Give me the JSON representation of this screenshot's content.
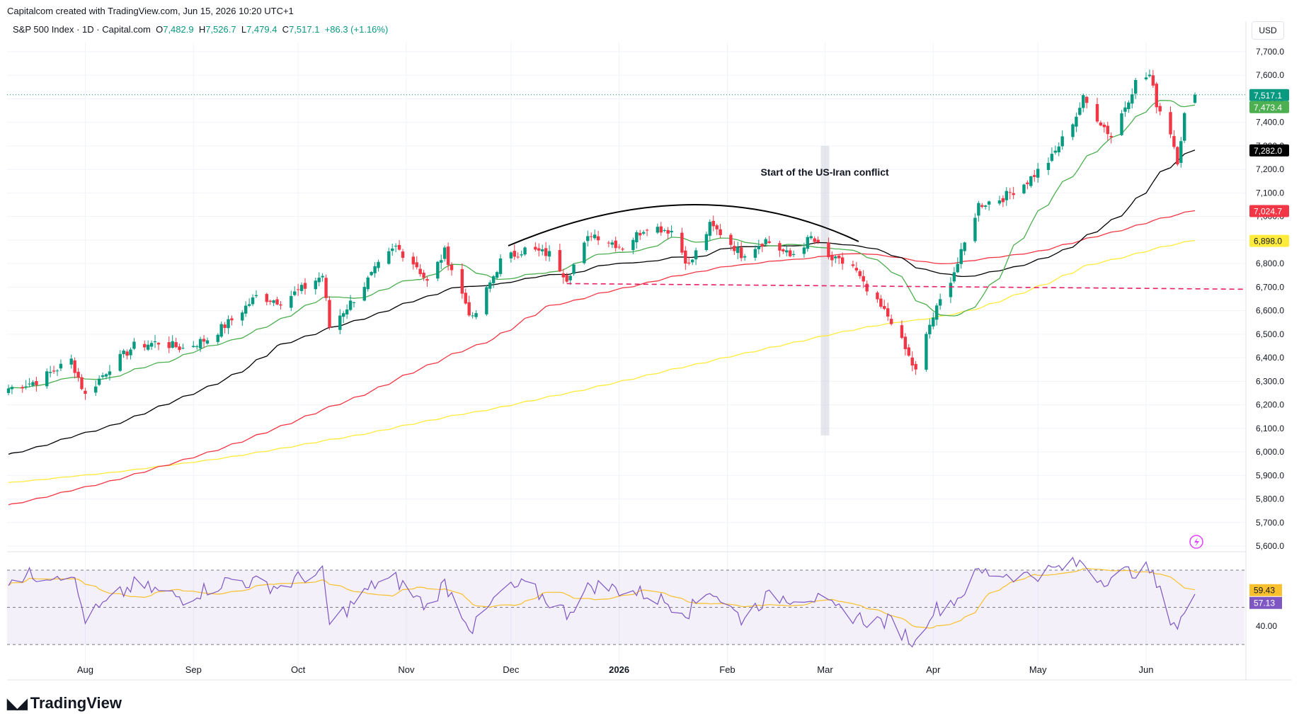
{
  "header": {
    "caption": "Capitalcom created with TradingView.com, Jun 15, 2026 10:20 UTC+1",
    "symbol": "S&P 500 Index · 1D · Capital.com",
    "o_label": "O",
    "o_value": "7,482.9",
    "h_label": "H",
    "h_value": "7,526.7",
    "l_label": "L",
    "l_value": "7,479.4",
    "c_label": "C",
    "c_value": "7,517.1",
    "change": "+86.3 (+1.16%)",
    "currency": "USD"
  },
  "brand": {
    "name": "TradingView",
    "logo_icon": "tradingview-logo-icon"
  },
  "colors": {
    "up": "#089981",
    "down": "#f23645",
    "ma20": "#4caf50",
    "ma50": "#000000",
    "ma100": "#f23645",
    "ma200": "#ffeb3b",
    "rsi": "#7e57c2",
    "rsi_ma": "#fbc02d"
  },
  "chart_data": {
    "type": "candlestick",
    "title": "S&P 500 Index · 1D · Capital.com",
    "y_axis": {
      "min": 5600,
      "max": 7700,
      "ticks": [
        "7,700.0",
        "7,600.0",
        "7,500.0",
        "7,400.0",
        "7,300.0",
        "7,200.0",
        "7,100.0",
        "7,000.0",
        "6,900.0",
        "6,800.0",
        "6,700.0",
        "6,600.0",
        "6,500.0",
        "6,400.0",
        "6,300.0",
        "6,200.0",
        "6,100.0",
        "6,000.0",
        "5,900.0",
        "5,800.0",
        "5,700.0",
        "5,600.0"
      ]
    },
    "x_axis": {
      "labels": [
        "Aug",
        "Sep",
        "Oct",
        "Nov",
        "Dec",
        "2026",
        "Feb",
        "Mar",
        "Apr",
        "May",
        "Jun"
      ],
      "bold": "2026"
    },
    "close_keypoints": [
      [
        "2025-07-10",
        6270
      ],
      [
        "2025-07-18",
        6300
      ],
      [
        "2025-07-28",
        6390
      ],
      [
        "2025-08-01",
        6240
      ],
      [
        "2025-08-08",
        6360
      ],
      [
        "2025-08-15",
        6450
      ],
      [
        "2025-08-22",
        6465
      ],
      [
        "2025-08-29",
        6440
      ],
      [
        "2025-09-05",
        6480
      ],
      [
        "2025-09-12",
        6560
      ],
      [
        "2025-09-19",
        6660
      ],
      [
        "2025-09-26",
        6640
      ],
      [
        "2025-10-03",
        6700
      ],
      [
        "2025-10-08",
        6750
      ],
      [
        "2025-10-10",
        6530
      ],
      [
        "2025-10-17",
        6650
      ],
      [
        "2025-10-24",
        6790
      ],
      [
        "2025-10-29",
        6870
      ],
      [
        "2025-11-04",
        6790
      ],
      [
        "2025-11-07",
        6720
      ],
      [
        "2025-11-12",
        6850
      ],
      [
        "2025-11-20",
        6560
      ],
      [
        "2025-11-28",
        6810
      ],
      [
        "2025-12-05",
        6860
      ],
      [
        "2025-12-12",
        6840
      ],
      [
        "2025-12-17",
        6740
      ],
      [
        "2025-12-24",
        6930
      ],
      [
        "2026-01-02",
        6870
      ],
      [
        "2026-01-09",
        6960
      ],
      [
        "2026-01-16",
        6940
      ],
      [
        "2026-01-21",
        6790
      ],
      [
        "2026-01-27",
        6960
      ],
      [
        "2026-01-30",
        6930
      ],
      [
        "2026-02-05",
        6840
      ],
      [
        "2026-02-12",
        6900
      ],
      [
        "2026-02-19",
        6830
      ],
      [
        "2026-02-25",
        6910
      ],
      [
        "2026-03-02",
        6820
      ],
      [
        "2026-03-09",
        6790
      ],
      [
        "2026-03-13",
        6680
      ],
      [
        "2026-03-20",
        6560
      ],
      [
        "2026-03-27",
        6340
      ],
      [
        "2026-03-31",
        6540
      ],
      [
        "2026-04-03",
        6640
      ],
      [
        "2026-04-08",
        6800
      ],
      [
        "2026-04-14",
        7050
      ],
      [
        "2026-04-21",
        7080
      ],
      [
        "2026-04-28",
        7150
      ],
      [
        "2026-05-05",
        7250
      ],
      [
        "2026-05-12",
        7430
      ],
      [
        "2026-05-14",
        7500
      ],
      [
        "2026-05-19",
        7400
      ],
      [
        "2026-05-22",
        7340
      ],
      [
        "2026-05-26",
        7470
      ],
      [
        "2026-05-29",
        7570
      ],
      [
        "2026-06-02",
        7600
      ],
      [
        "2026-06-04",
        7480
      ],
      [
        "2026-06-08",
        7360
      ],
      [
        "2026-06-10",
        7240
      ],
      [
        "2026-06-12",
        7430
      ],
      [
        "2026-06-15",
        7517
      ]
    ],
    "moving_averages": [
      {
        "name": "MA20",
        "last": "7,473.4",
        "color": "#4caf50"
      },
      {
        "name": "MA50",
        "last": "7,282.0",
        "color": "#000000"
      },
      {
        "name": "MA100",
        "last": "7,024.7",
        "color": "#f23645"
      },
      {
        "name": "MA200",
        "last": "6,898.0",
        "color": "#ffeb3b"
      }
    ],
    "price_labels": [
      {
        "value": "7,517.1",
        "bg": "#089981",
        "fg": "#ffffff"
      },
      {
        "value": "7,473.4",
        "bg": "#4caf50",
        "fg": "#ffffff"
      },
      {
        "value": "7,282.0",
        "bg": "#000000",
        "fg": "#ffffff"
      },
      {
        "value": "7,024.7",
        "bg": "#f23645",
        "fg": "#ffffff"
      },
      {
        "value": "6,898.0",
        "bg": "#ffeb3b",
        "fg": "#131722"
      }
    ],
    "annotations": {
      "conflict_label": "Start of the US-Iran conflict",
      "conflict_date": "2026-03-01",
      "support_level": 6715,
      "rounded_top": "Dec to Mar arc"
    },
    "rsi": {
      "levels": [
        70,
        50,
        30
      ],
      "tick_label": "40.00",
      "rsi_value": "57.13",
      "rsi_ma_value": "59.43",
      "keypoints": [
        [
          "2025-07-10",
          66
        ],
        [
          "2025-07-28",
          69
        ],
        [
          "2025-08-01",
          44
        ],
        [
          "2025-08-15",
          62
        ],
        [
          "2025-08-29",
          55
        ],
        [
          "2025-09-12",
          65
        ],
        [
          "2025-09-26",
          61
        ],
        [
          "2025-10-03",
          67
        ],
        [
          "2025-10-08",
          68
        ],
        [
          "2025-10-10",
          41
        ],
        [
          "2025-10-24",
          64
        ],
        [
          "2025-10-29",
          65
        ],
        [
          "2025-11-07",
          50
        ],
        [
          "2025-11-12",
          63
        ],
        [
          "2025-11-20",
          38
        ],
        [
          "2025-11-28",
          58
        ],
        [
          "2025-12-05",
          62
        ],
        [
          "2025-12-17",
          47
        ],
        [
          "2025-12-24",
          62
        ],
        [
          "2026-01-09",
          57
        ],
        [
          "2026-01-21",
          48
        ],
        [
          "2026-01-27",
          60
        ],
        [
          "2026-02-05",
          44
        ],
        [
          "2026-02-12",
          55
        ],
        [
          "2026-02-25",
          56
        ],
        [
          "2026-03-02",
          50
        ],
        [
          "2026-03-13",
          43
        ],
        [
          "2026-03-20",
          42
        ],
        [
          "2026-03-27",
          30
        ],
        [
          "2026-03-31",
          47
        ],
        [
          "2026-04-08",
          55
        ],
        [
          "2026-04-14",
          69
        ],
        [
          "2026-04-28",
          67
        ],
        [
          "2026-05-05",
          70
        ],
        [
          "2026-05-14",
          74
        ],
        [
          "2026-05-19",
          65
        ],
        [
          "2026-05-29",
          70
        ],
        [
          "2026-06-02",
          70
        ],
        [
          "2026-06-08",
          45
        ],
        [
          "2026-06-10",
          40
        ],
        [
          "2026-06-15",
          57
        ]
      ]
    }
  }
}
